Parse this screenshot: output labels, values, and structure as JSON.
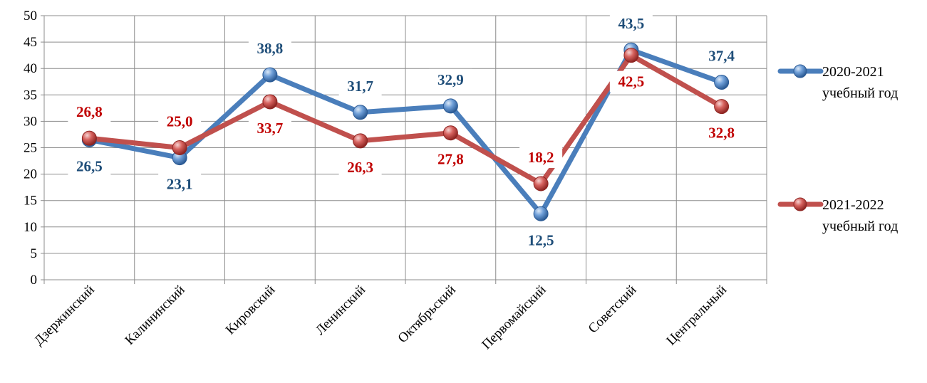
{
  "chart_data": {
    "type": "line",
    "title": "",
    "xlabel": "",
    "ylabel": "",
    "categories": [
      "Дзержинский",
      "Калининский",
      "Кировский",
      "Ленинский",
      "Октябрьский",
      "Первомайский",
      "Советский",
      "Центральный"
    ],
    "series": [
      {
        "name_line1": "2020-2021",
        "name_line2": "учебный год",
        "color": "#4a7ebb",
        "label_color": "#1f4e79",
        "values": [
          26.5,
          23.1,
          38.8,
          31.7,
          32.9,
          12.5,
          43.5,
          37.4
        ],
        "labels": [
          "26,5",
          "23,1",
          "38,8",
          "31,7",
          "32,9",
          "12,5",
          "43,5",
          "37,4"
        ]
      },
      {
        "name_line1": "2021-2022",
        "name_line2": "учебный год",
        "color": "#c0504d",
        "label_color": "#c00000",
        "values": [
          26.8,
          25.0,
          33.7,
          26.3,
          27.8,
          18.2,
          42.5,
          32.8
        ],
        "labels": [
          "26,8",
          "25,0",
          "33,7",
          "26,3",
          "27,8",
          "18,2",
          "42,5",
          "32,8"
        ]
      }
    ],
    "ylim": [
      0,
      50
    ],
    "yticks": [
      0,
      5,
      10,
      15,
      20,
      25,
      30,
      35,
      40,
      45,
      50
    ],
    "grid": true,
    "legend": "right"
  }
}
